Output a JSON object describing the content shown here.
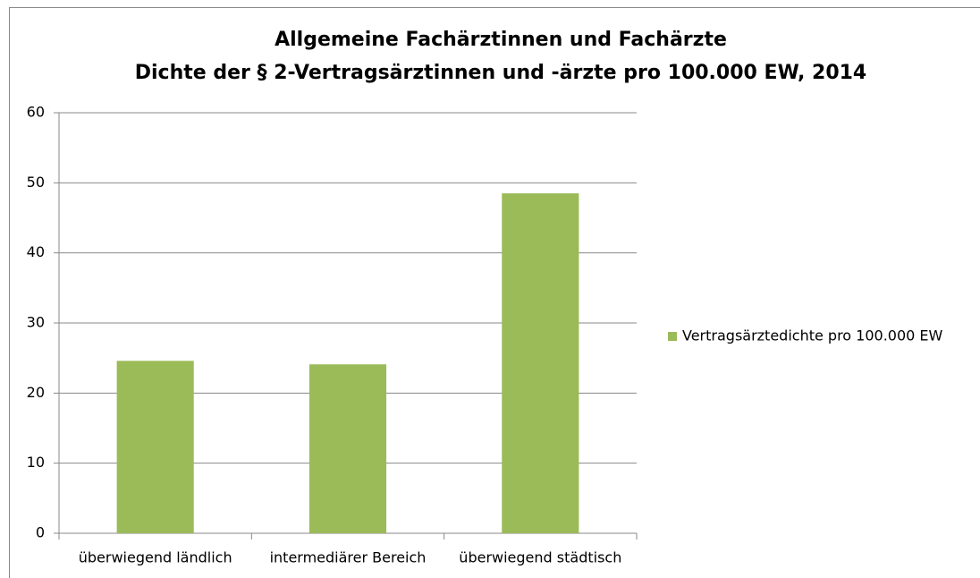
{
  "chart_data": {
    "type": "bar",
    "title": "Allgemeine Fachärztinnen und Fachärzte",
    "subtitle": "Dichte der § 2-Vertragsärztinnen und -ärzte pro 100.000 EW, 2014",
    "categories": [
      "überwiegend ländlich",
      "intermediärer Bereich",
      "überwiegend städtisch"
    ],
    "series": [
      {
        "name": "Vertragsärztedichte pro 100.000 EW",
        "color": "#9bbb59",
        "values": [
          24.6,
          24.1,
          48.5
        ]
      }
    ],
    "ylim": [
      0,
      60
    ],
    "yticks": [
      0,
      10,
      20,
      30,
      40,
      50,
      60
    ],
    "grid": true,
    "legend": "right"
  }
}
